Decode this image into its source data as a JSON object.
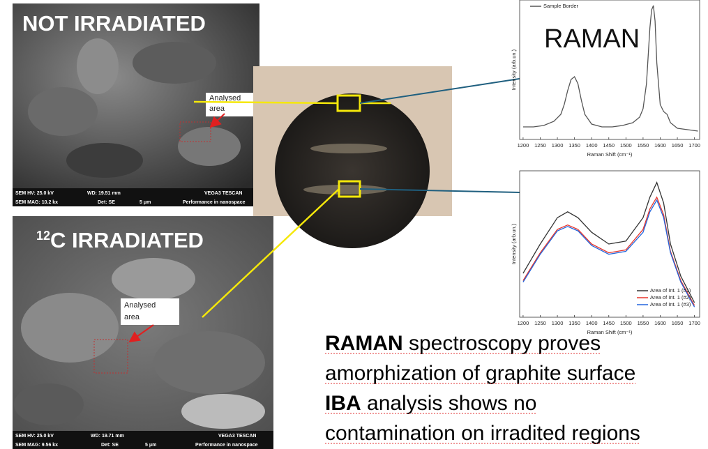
{
  "panels": [
    {
      "title": "NOT  IRRADIATED",
      "annotation": [
        "Analysed",
        "area"
      ],
      "footer": [
        "SEM HV: 25.0 kV",
        "WD: 19.51 mm",
        "VEGA3 TESCAN",
        "SEM MAG: 10.2 kx",
        "Det: SE",
        "5 μm",
        "Performance in nanospace"
      ]
    },
    {
      "superscript": "12",
      "title": "C IRRADIATED",
      "annotation": [
        "Analysed",
        "area"
      ],
      "footer": [
        "SEM HV: 25.0 kV",
        "WD: 19.71 mm",
        "VEGA3 TESCAN",
        "SEM MAG: 9.56 kx",
        "Det: SE",
        "5 μm",
        "Performance in nanospace"
      ]
    }
  ],
  "raman_title": "RAMAN",
  "summary": [
    {
      "bold": "RAMAN",
      "text": " spectroscopy proves"
    },
    {
      "text": "amorphization of graphite surface"
    },
    {
      "bold": "IBA",
      "text": " analysis shows no"
    },
    {
      "text": "contamination on irradited regions"
    }
  ],
  "chart_data": [
    {
      "type": "line",
      "x_label": "Raman Shift (cm⁻¹)",
      "y_label": "Intensity (arb.un.)",
      "xlim": [
        1190,
        1715
      ],
      "ylim": [
        0,
        1
      ],
      "xticks": [
        1200,
        1250,
        1300,
        1350,
        1400,
        1450,
        1500,
        1550,
        1600,
        1650,
        1700
      ],
      "x": [
        1200,
        1230,
        1260,
        1290,
        1310,
        1320,
        1330,
        1340,
        1350,
        1360,
        1370,
        1380,
        1400,
        1430,
        1460,
        1490,
        1520,
        1540,
        1550,
        1560,
        1570,
        1575,
        1580,
        1585,
        1590,
        1600,
        1610,
        1620,
        1630,
        1650,
        1680,
        1710
      ],
      "legend": "top-left",
      "series": [
        {
          "name": "Sample Border",
          "color": "#555555",
          "values": [
            0.09,
            0.09,
            0.1,
            0.13,
            0.18,
            0.25,
            0.35,
            0.43,
            0.45,
            0.4,
            0.28,
            0.18,
            0.11,
            0.09,
            0.09,
            0.1,
            0.12,
            0.16,
            0.22,
            0.4,
            0.8,
            0.93,
            0.96,
            0.85,
            0.55,
            0.25,
            0.2,
            0.18,
            0.12,
            0.08,
            0.07,
            0.06
          ]
        }
      ]
    },
    {
      "type": "line",
      "x_label": "Raman Shift (cm⁻¹)",
      "y_label": "Intensity (arb.un.)",
      "xlim": [
        1190,
        1715
      ],
      "ylim": [
        0,
        1
      ],
      "xticks": [
        1200,
        1250,
        1300,
        1350,
        1400,
        1450,
        1500,
        1550,
        1600,
        1650,
        1700
      ],
      "x": [
        1200,
        1250,
        1300,
        1330,
        1360,
        1400,
        1450,
        1500,
        1550,
        1570,
        1590,
        1610,
        1630,
        1660,
        1700
      ],
      "legend": "bottom-right",
      "series": [
        {
          "name": "Area of Int. 1 (#1)",
          "color": "#333333",
          "values": [
            0.3,
            0.5,
            0.68,
            0.72,
            0.68,
            0.58,
            0.5,
            0.52,
            0.68,
            0.82,
            0.92,
            0.78,
            0.5,
            0.28,
            0.1
          ]
        },
        {
          "name": "Area of Int. 1 (#2)",
          "color": "#e8342a",
          "values": [
            0.25,
            0.44,
            0.6,
            0.63,
            0.6,
            0.5,
            0.44,
            0.46,
            0.6,
            0.74,
            0.82,
            0.7,
            0.45,
            0.25,
            0.08
          ]
        },
        {
          "name": "Area of Int. 1 (#3)",
          "color": "#2266dd",
          "values": [
            0.24,
            0.43,
            0.59,
            0.62,
            0.59,
            0.49,
            0.43,
            0.45,
            0.58,
            0.72,
            0.8,
            0.68,
            0.44,
            0.24,
            0.07
          ]
        }
      ]
    }
  ]
}
